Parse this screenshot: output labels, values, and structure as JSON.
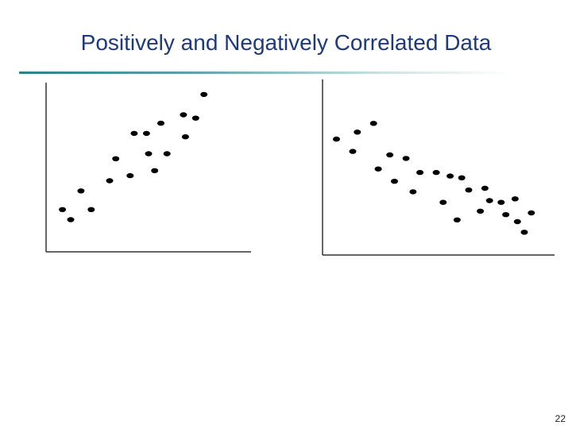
{
  "slide": {
    "title": "Positively and Negatively Correlated Data",
    "page_number": "22"
  },
  "chart_data": [
    {
      "type": "scatter",
      "title": "",
      "xlabel": "",
      "ylabel": "",
      "xlim": [
        0,
        100
      ],
      "ylim": [
        0,
        100
      ],
      "grid": false,
      "series": [
        {
          "x": [
            8,
            12,
            17,
            22,
            31,
            34,
            41,
            43,
            49,
            50,
            53,
            56,
            59,
            67,
            68,
            73,
            77
          ],
          "y": [
            25,
            19,
            36,
            25,
            42,
            55,
            45,
            70,
            70,
            58,
            48,
            76,
            58,
            81,
            68,
            79,
            93
          ]
        }
      ]
    },
    {
      "type": "scatter",
      "title": "",
      "xlabel": "",
      "ylabel": "",
      "xlim": [
        0,
        100
      ],
      "ylim": [
        0,
        100
      ],
      "grid": false,
      "series": [
        {
          "x": [
            6,
            13,
            15,
            22,
            24,
            29,
            31,
            36,
            39,
            42,
            49,
            52,
            55,
            58,
            60,
            63,
            68,
            70,
            72,
            77,
            79,
            83,
            84,
            87,
            90
          ],
          "y": [
            66,
            59,
            70,
            75,
            49,
            57,
            42,
            55,
            36,
            47,
            47,
            30,
            45,
            20,
            44,
            37,
            25,
            38,
            31,
            30,
            23,
            32,
            19,
            13,
            24
          ]
        }
      ]
    }
  ]
}
